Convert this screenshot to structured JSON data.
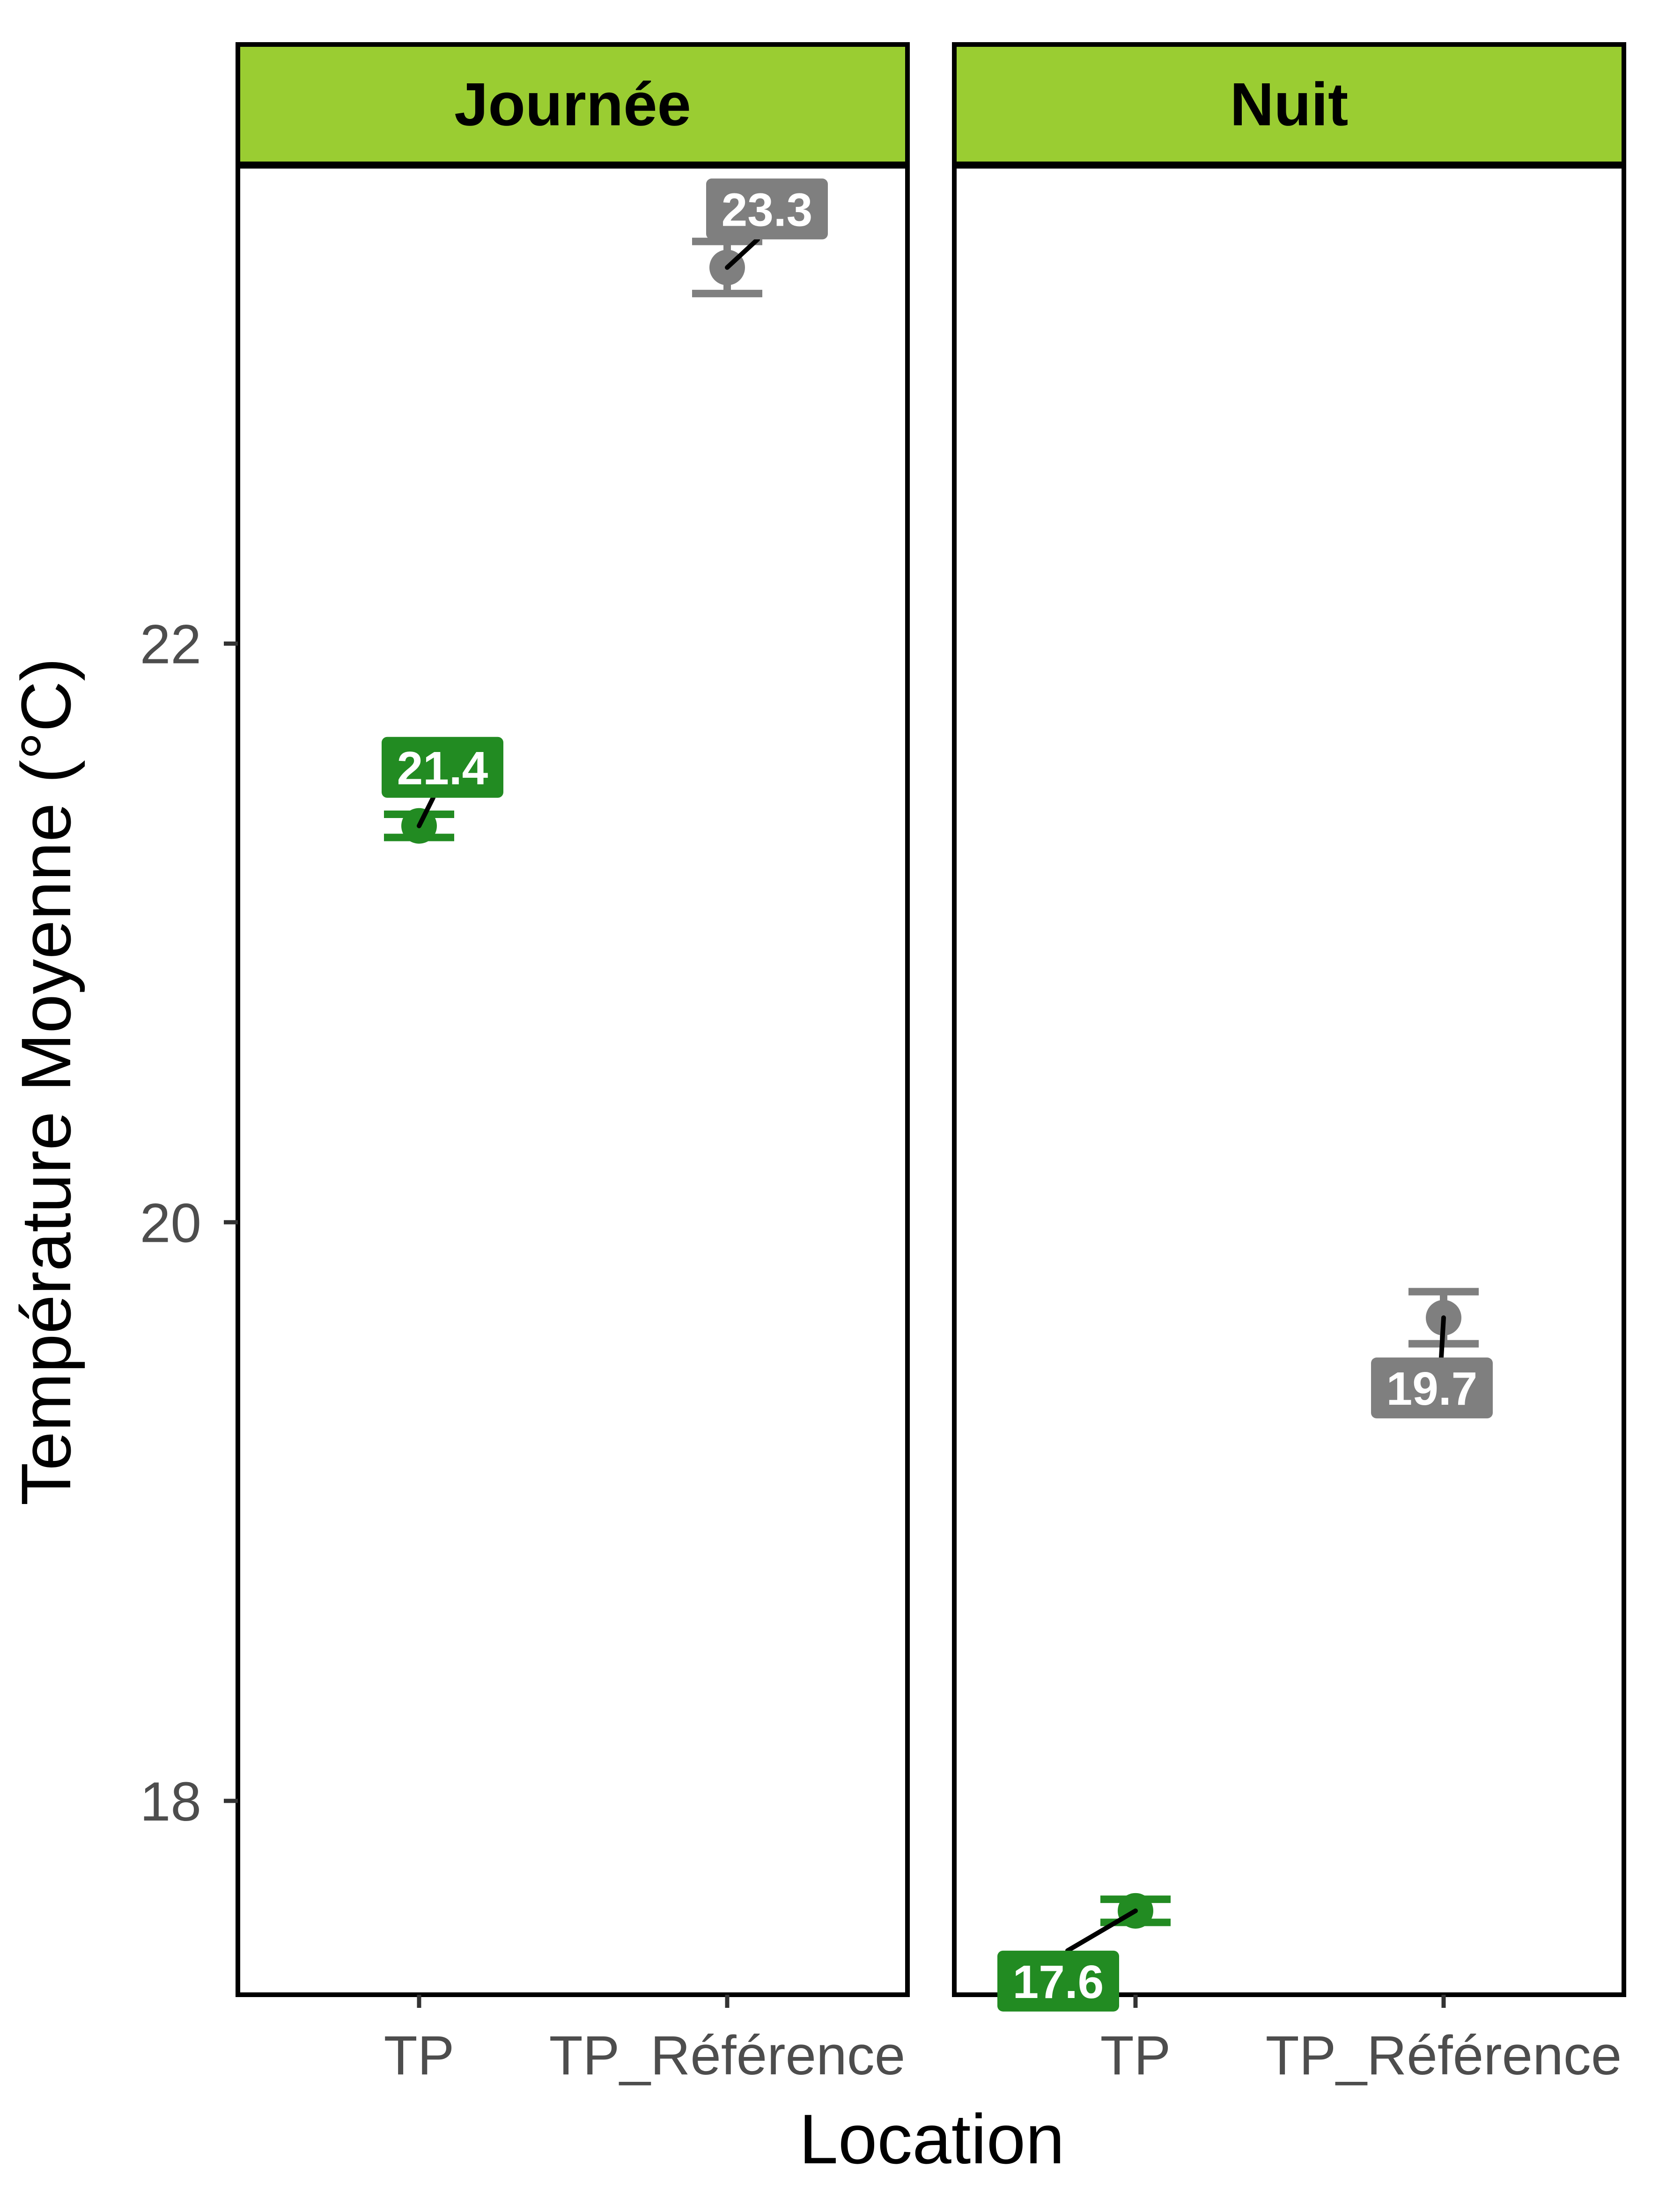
{
  "chart_data": {
    "type": "scatter",
    "facets": [
      "Journée",
      "Nuit"
    ],
    "categories": [
      "TP",
      "TP_Référence"
    ],
    "xlabel": "Location",
    "ylabel": "Température Moyenne (°C)",
    "yticks": [
      18,
      20,
      22
    ],
    "ylim": [
      17.33,
      23.65
    ],
    "grid": false,
    "legend": "none",
    "colors": {
      "TP": "#228B22",
      "TP_Référence": "#7F7F7F",
      "strip": "#9ACD32"
    },
    "points": [
      {
        "facet": "Journée",
        "location": "TP",
        "mean": 21.37,
        "ymin": 21.33,
        "ymax": 21.41,
        "label": "21.4"
      },
      {
        "facet": "Journée",
        "location": "TP_Référence",
        "mean": 23.3,
        "ymin": 23.21,
        "ymax": 23.39,
        "label": "23.3"
      },
      {
        "facet": "Nuit",
        "location": "TP",
        "mean": 17.62,
        "ymin": 17.58,
        "ymax": 17.66,
        "label": "17.6"
      },
      {
        "facet": "Nuit",
        "location": "TP_Référence",
        "mean": 19.67,
        "ymin": 19.58,
        "ymax": 19.76,
        "label": "19.7"
      }
    ]
  }
}
